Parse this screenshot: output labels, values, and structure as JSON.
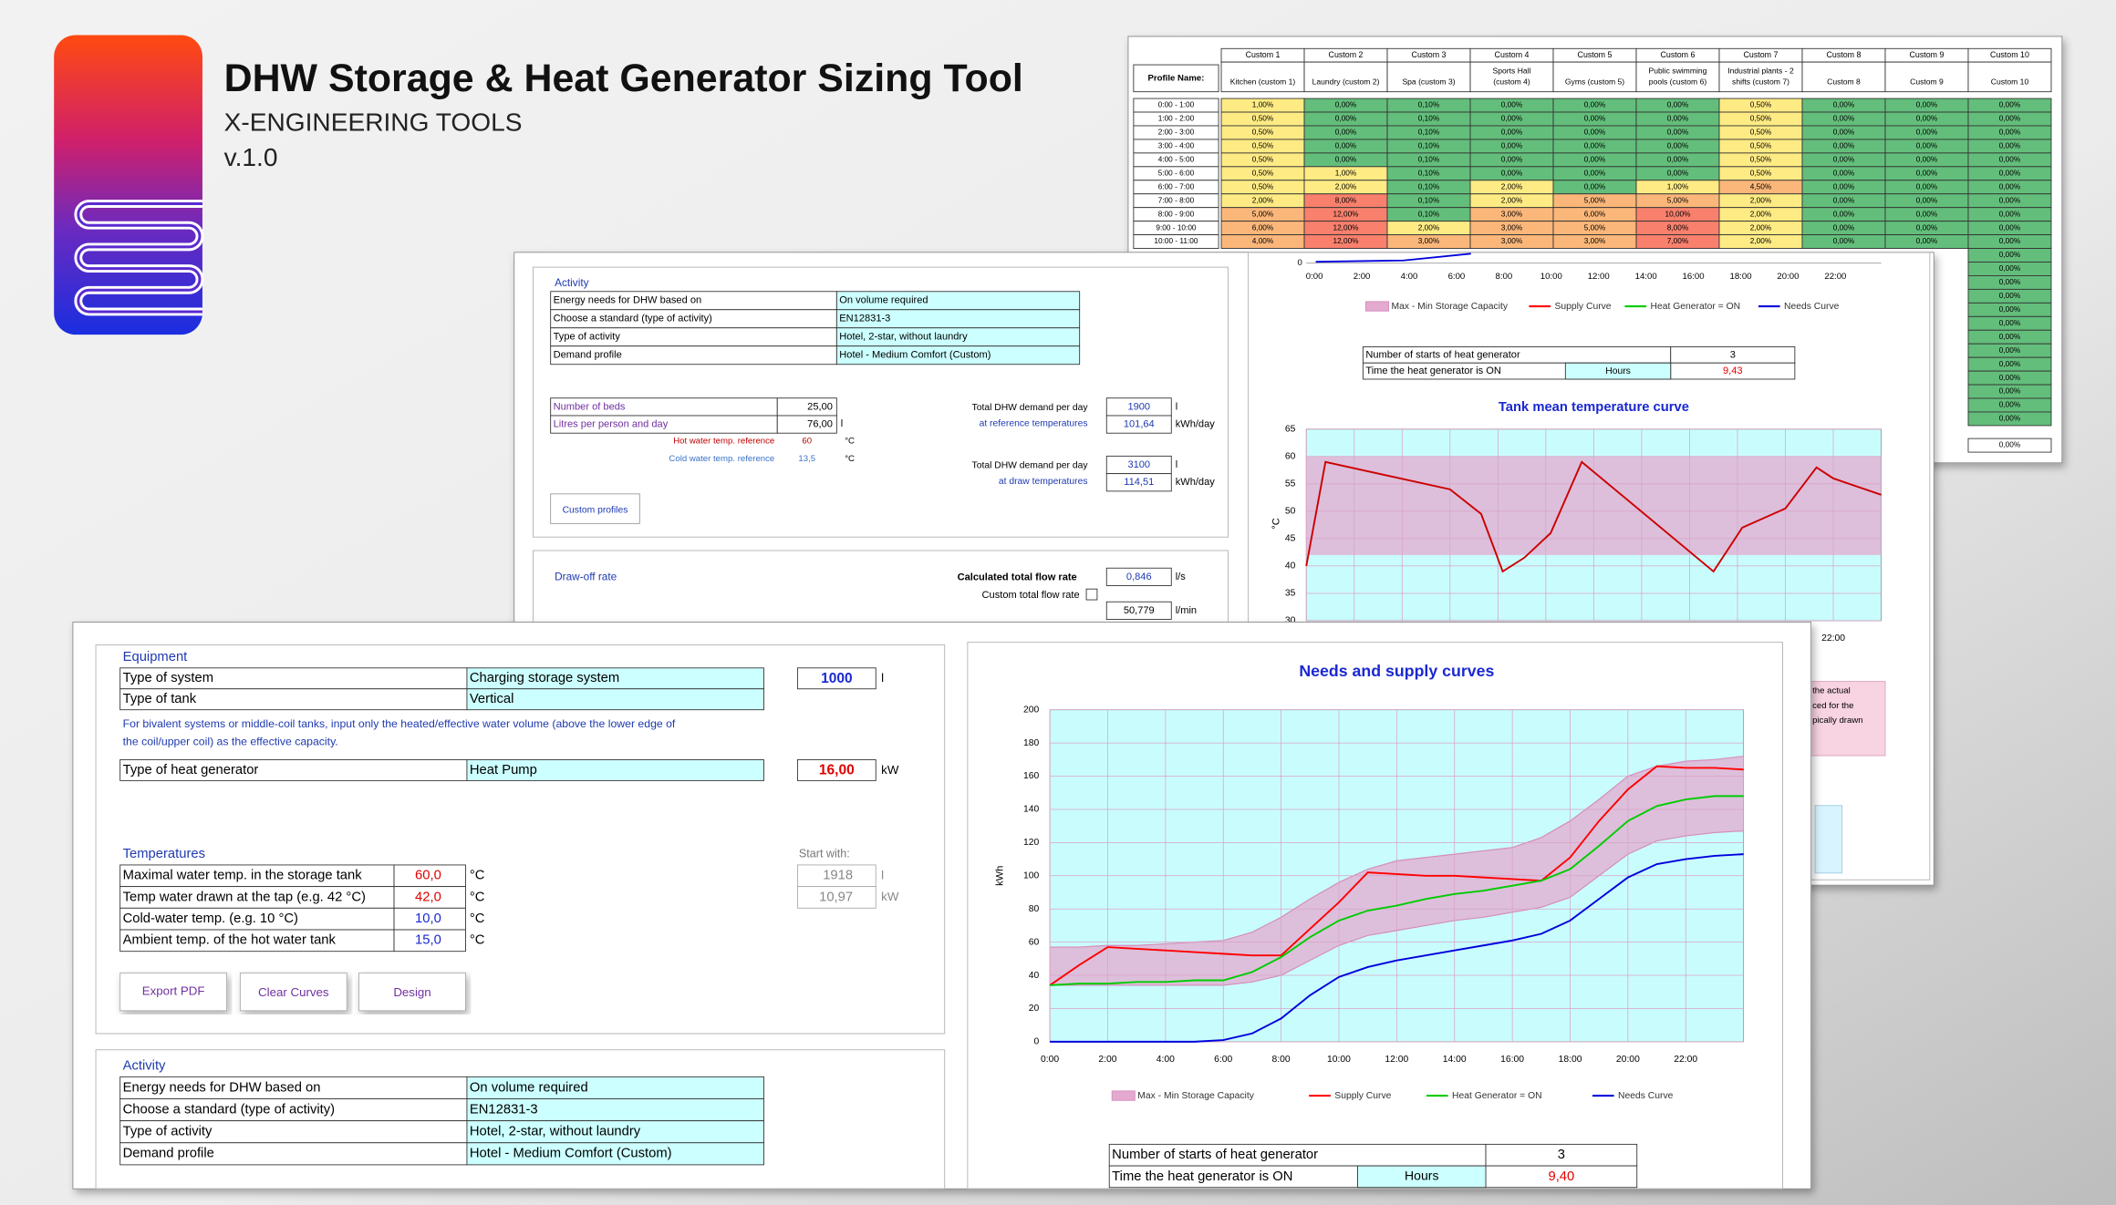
{
  "header": {
    "title": "DHW Storage & Heat Generator Sizing Tool",
    "subtitle": "X-ENGINEERING TOOLS",
    "version": "v.1.0"
  },
  "profiles": {
    "label": "Profile Name:",
    "columns": [
      {
        "code": "Custom 1",
        "name": [
          "Kitchen (custom 1)"
        ]
      },
      {
        "code": "Custom 2",
        "name": [
          "Laundry (custom 2)"
        ]
      },
      {
        "code": "Custom 3",
        "name": [
          "Spa (custom 3)"
        ]
      },
      {
        "code": "Custom 4",
        "name": [
          "Sports Hall",
          "(custom 4)"
        ]
      },
      {
        "code": "Custom 5",
        "name": [
          "Gyms (custom 5)"
        ]
      },
      {
        "code": "Custom 6",
        "name": [
          "Public swimming",
          "pools (custom 6)"
        ]
      },
      {
        "code": "Custom 7",
        "name": [
          "Industrial plants - 2",
          "shifts (custom 7)"
        ]
      },
      {
        "code": "Custom 8",
        "name": [
          "Custom 8"
        ]
      },
      {
        "code": "Custom 9",
        "name": [
          "Custom 9"
        ]
      },
      {
        "code": "Custom 10",
        "name": [
          "Custom 10"
        ]
      }
    ],
    "rows": [
      {
        "time": "0:00 - 1:00",
        "cells": [
          "1,00%",
          "0,00%",
          "0,10%",
          "0,00%",
          "0,00%",
          "0,00%",
          "0,50%",
          "0,00%",
          "0,00%",
          "0,00%"
        ]
      },
      {
        "time": "1:00 - 2:00",
        "cells": [
          "0,50%",
          "0,00%",
          "0,10%",
          "0,00%",
          "0,00%",
          "0,00%",
          "0,50%",
          "0,00%",
          "0,00%",
          "0,00%"
        ]
      },
      {
        "time": "2:00 - 3:00",
        "cells": [
          "0,50%",
          "0,00%",
          "0,10%",
          "0,00%",
          "0,00%",
          "0,00%",
          "0,50%",
          "0,00%",
          "0,00%",
          "0,00%"
        ]
      },
      {
        "time": "3:00 - 4:00",
        "cells": [
          "0,50%",
          "0,00%",
          "0,10%",
          "0,00%",
          "0,00%",
          "0,00%",
          "0,50%",
          "0,00%",
          "0,00%",
          "0,00%"
        ]
      },
      {
        "time": "4:00 - 5:00",
        "cells": [
          "0,50%",
          "0,00%",
          "0,10%",
          "0,00%",
          "0,00%",
          "0,00%",
          "0,50%",
          "0,00%",
          "0,00%",
          "0,00%"
        ]
      },
      {
        "time": "5:00 - 6:00",
        "cells": [
          "0,50%",
          "1,00%",
          "0,10%",
          "0,00%",
          "0,00%",
          "0,00%",
          "0,50%",
          "0,00%",
          "0,00%",
          "0,00%"
        ]
      },
      {
        "time": "6:00 - 7:00",
        "cells": [
          "0,50%",
          "2,00%",
          "0,10%",
          "2,00%",
          "0,00%",
          "1,00%",
          "4,50%",
          "0,00%",
          "0,00%",
          "0,00%"
        ]
      },
      {
        "time": "7:00 - 8:00",
        "cells": [
          "2,00%",
          "8,00%",
          "0,10%",
          "2,00%",
          "5,00%",
          "5,00%",
          "2,00%",
          "0,00%",
          "0,00%",
          "0,00%"
        ]
      },
      {
        "time": "8:00 - 9:00",
        "cells": [
          "5,00%",
          "12,00%",
          "0,10%",
          "3,00%",
          "6,00%",
          "10,00%",
          "2,00%",
          "0,00%",
          "0,00%",
          "0,00%"
        ]
      },
      {
        "time": "9:00 - 10:00",
        "cells": [
          "6,00%",
          "12,00%",
          "2,00%",
          "3,00%",
          "5,00%",
          "8,00%",
          "2,00%",
          "0,00%",
          "0,00%",
          "0,00%"
        ]
      },
      {
        "time": "10:00 - 11:00",
        "cells": [
          "4,00%",
          "12,00%",
          "3,00%",
          "3,00%",
          "3,00%",
          "7,00%",
          "2,00%",
          "0,00%",
          "0,00%",
          "0,00%"
        ]
      }
    ],
    "last_column_rest": [
      "0,00%",
      "0,00%",
      "0,00%",
      "0,00%",
      "0,00%",
      "0,00%",
      "0,00%",
      "0,00%",
      "0,00%",
      "0,00%",
      "0,00%",
      "0,00%",
      "0,00%"
    ],
    "footer": [
      "%",
      "0,00%"
    ]
  },
  "middle": {
    "activity": {
      "title": "Activity",
      "rows": [
        [
          "Energy needs for DHW based on",
          "On volume required"
        ],
        [
          "Choose a standard (type of activity)",
          "EN12831-3"
        ],
        [
          "Type of activity",
          "Hotel, 2-star, without laundry"
        ],
        [
          "Demand profile",
          "Hotel - Medium Comfort (Custom)"
        ]
      ]
    },
    "beds": {
      "rows": [
        [
          "Number of beds",
          "25,00"
        ],
        [
          "Litres per person and day",
          "76,00"
        ]
      ],
      "unit": "l"
    },
    "references": [
      {
        "label": "Hot water temp. reference",
        "value": "60",
        "unit": "°C"
      },
      {
        "label": "Cold water temp. reference",
        "value": "13,5",
        "unit": "°C"
      }
    ],
    "totals": [
      {
        "label": "Total DHW demand per day",
        "sublabel": "at reference temperatures",
        "values": [
          "1900",
          "101,64"
        ],
        "units": [
          "l",
          "kWh/day"
        ]
      },
      {
        "label": "Total DHW demand per day",
        "sublabel": "at draw temperatures",
        "values": [
          "3100",
          "114,51"
        ],
        "units": [
          "l",
          "kWh/day"
        ]
      }
    ],
    "button": "Custom profiles",
    "draw_off": {
      "title": "Draw-off rate",
      "calc_label": "Calculated total flow rate",
      "calc_value": "0,846",
      "calc_unit": "l/s",
      "custom_label": "Custom total flow rate",
      "per_min_value": "50,779",
      "per_min_unit": "l/min"
    },
    "upper_chart": {
      "zero_label": "0",
      "xticks": [
        "0:00",
        "2:00",
        "4:00",
        "6:00",
        "8:00",
        "10:00",
        "12:00",
        "14:00",
        "16:00",
        "18:00",
        "20:00",
        "22:00"
      ],
      "legend": [
        "Max - Min Storage Capacity",
        "Supply Curve",
        "Heat Generator = ON",
        "Needs Curve"
      ]
    },
    "stats": {
      "rows": [
        [
          "Number of starts of heat generator",
          "3"
        ],
        [
          "Time the heat generator is ON",
          "9,43"
        ]
      ],
      "hours": "Hours"
    },
    "note": [
      "the actual",
      "ced for the",
      "pically drawn"
    ]
  },
  "front": {
    "equipment": {
      "title": "Equipment",
      "rows": [
        [
          "Type of system",
          "Charging storage system"
        ],
        [
          "Type of tank",
          "Vertical"
        ]
      ],
      "capacity": "1000",
      "capacity_unit": "l",
      "note": [
        "For bivalent systems or middle-coil tanks, input only the heated/effective water volume (above the lower edge of",
        "the coil/upper coil) as the effective capacity."
      ],
      "generator": [
        "Type of heat generator",
        "Heat Pump"
      ],
      "power": "16,00",
      "power_unit": "kW"
    },
    "temperatures": {
      "title": "Temperatures",
      "rows": [
        [
          "Maximal water temp. in the storage tank",
          "60,0"
        ],
        [
          "Temp water drawn at the tap (e.g. 42 °C)",
          "42,0"
        ],
        [
          "Cold-water temp. (e.g. 10 °C)",
          "10,0"
        ],
        [
          "Ambient temp. of the hot water tank",
          "15,0"
        ]
      ],
      "unit": "°C",
      "start_label": "Start with:",
      "start": [
        [
          "1918",
          "l"
        ],
        [
          "10,97",
          "kW"
        ]
      ]
    },
    "buttons": [
      "Export PDF",
      "Clear Curves",
      "Design"
    ],
    "activity": {
      "title": "Activity",
      "rows": [
        [
          "Energy needs for DHW based on",
          "On volume required"
        ],
        [
          "Choose a standard (type of activity)",
          "EN12831-3"
        ],
        [
          "Type of activity",
          "Hotel, 2-star, without laundry"
        ],
        [
          "Demand profile",
          "Hotel - Medium Comfort (Custom)"
        ]
      ]
    },
    "stats": {
      "rows": [
        [
          "Number of starts of heat generator",
          "3"
        ],
        [
          "Time the heat generator is ON",
          "9,40"
        ]
      ],
      "hours": "Hours"
    }
  },
  "chart_data": [
    {
      "type": "line",
      "title": "Needs and supply curves",
      "y_label": "kWh",
      "x": [
        0,
        1,
        2,
        3,
        4,
        5,
        6,
        7,
        8,
        9,
        10,
        11,
        12,
        13,
        14,
        15,
        16,
        17,
        18,
        19,
        20,
        21,
        22,
        23,
        24
      ],
      "xlim": [
        0,
        24
      ],
      "xticks": [
        {
          "value": 0,
          "label": "0:00"
        },
        {
          "value": 2,
          "label": "2:00"
        },
        {
          "value": 4,
          "label": "4:00"
        },
        {
          "value": 6,
          "label": "6:00"
        },
        {
          "value": 8,
          "label": "8:00"
        },
        {
          "value": 10,
          "label": "10:00"
        },
        {
          "value": 12,
          "label": "12:00"
        },
        {
          "value": 14,
          "label": "14:00"
        },
        {
          "value": 16,
          "label": "16:00"
        },
        {
          "value": 18,
          "label": "18:00"
        },
        {
          "value": 20,
          "label": "20:00"
        },
        {
          "value": 22,
          "label": "22:00"
        }
      ],
      "ylim": [
        0,
        200
      ],
      "yticks": [
        0,
        20,
        40,
        60,
        80,
        100,
        120,
        140,
        160,
        180,
        200
      ],
      "grid": true,
      "band": {
        "name": "Max - Min Storage Capacity",
        "color": "#e3a9cf",
        "max": [
          57,
          57,
          58,
          58,
          59,
          60,
          61,
          66,
          75,
          86,
          96,
          104,
          109,
          111,
          113,
          115,
          117,
          123,
          133,
          146,
          160,
          166,
          169,
          170,
          172
        ],
        "min": [
          34,
          34,
          34,
          34,
          34,
          34,
          34,
          36,
          40,
          49,
          58,
          64,
          67,
          70,
          73,
          75,
          78,
          81,
          87,
          100,
          113,
          121,
          124,
          126,
          127
        ]
      },
      "series": [
        {
          "name": "Supply Curve",
          "color": "#ff0000",
          "values": [
            34,
            46,
            57,
            56,
            55,
            54,
            53,
            52,
            52,
            68,
            84,
            102,
            101,
            100,
            100,
            99,
            98,
            97,
            111,
            133,
            152,
            166,
            165,
            165,
            164
          ]
        },
        {
          "name": "Heat Generator = ON",
          "color": "#00cc00",
          "values": [
            34,
            35,
            35,
            36,
            36,
            37,
            37,
            42,
            51,
            63,
            73,
            79,
            82,
            86,
            89,
            91,
            94,
            97,
            104,
            118,
            133,
            142,
            146,
            148,
            148
          ]
        },
        {
          "name": "Needs Curve",
          "color": "#0000dd",
          "values": [
            0,
            0,
            0,
            0,
            0,
            0,
            1,
            5,
            14,
            28,
            39,
            45,
            49,
            52,
            55,
            58,
            61,
            65,
            73,
            86,
            99,
            107,
            110,
            112,
            113
          ]
        }
      ]
    },
    {
      "type": "line",
      "title": "Tank mean temperature curve",
      "y_label": "°C",
      "x": [
        0,
        0.8,
        6,
        7.3,
        8.2,
        9.1,
        10.2,
        11.5,
        17,
        18.2,
        20,
        21.3,
        22,
        24
      ],
      "xlim": [
        0,
        24
      ],
      "xticks": [
        {
          "value": 0,
          "label": "0:00"
        },
        {
          "value": 2,
          "label": "2:00"
        },
        {
          "value": 4,
          "label": "4:00"
        },
        {
          "value": 6,
          "label": "6:00"
        },
        {
          "value": 8,
          "label": "8:00"
        },
        {
          "value": 10,
          "label": "10:00"
        },
        {
          "value": 12,
          "label": "12:00"
        },
        {
          "value": 14,
          "label": "14:00"
        },
        {
          "value": 16,
          "label": "16:00"
        },
        {
          "value": 18,
          "label": "18:00"
        },
        {
          "value": 20,
          "label": "20:00"
        },
        {
          "value": 22,
          "label": "22:00"
        }
      ],
      "ylim": [
        30,
        65
      ],
      "yticks": [
        30,
        35,
        40,
        45,
        50,
        55,
        60,
        65
      ],
      "grid": true,
      "band": {
        "color": "#e3a9cf",
        "min": 42,
        "max": 60
      },
      "series": [
        {
          "color": "#cc0000",
          "values": [
            40,
            59,
            54,
            49.5,
            39,
            41.5,
            46,
            59,
            39,
            47,
            50.5,
            58,
            56,
            53
          ]
        }
      ]
    }
  ]
}
